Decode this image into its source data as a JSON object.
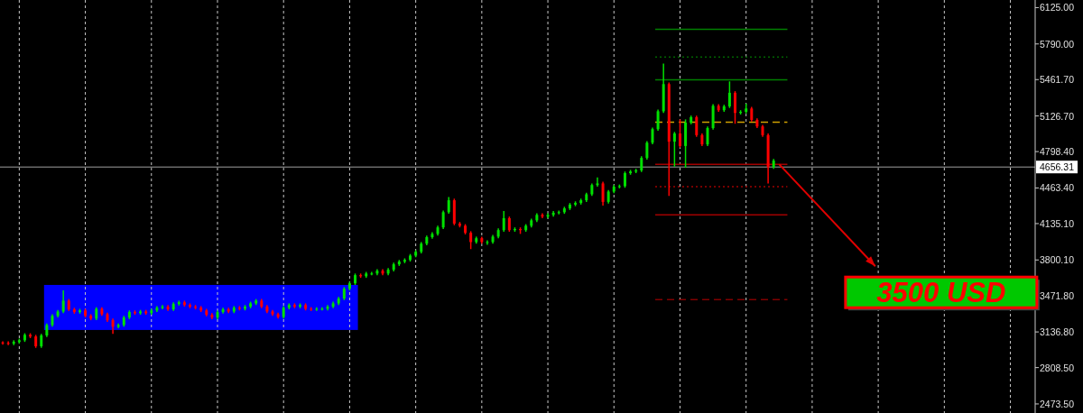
{
  "chart_data": {
    "type": "candlestick",
    "categories": [
      null,
      null,
      null,
      null,
      null,
      null,
      null,
      null,
      null,
      null,
      null,
      null,
      null,
      null,
      null,
      null,
      null,
      null,
      null,
      null,
      null,
      null,
      null,
      null,
      null,
      null,
      null,
      null,
      null,
      null,
      null,
      null,
      null,
      null,
      null,
      null,
      null,
      null,
      null,
      null,
      null,
      null,
      null,
      null,
      null,
      null,
      null,
      null,
      null,
      null,
      null,
      null,
      null,
      null,
      null,
      null,
      null,
      null,
      null,
      null,
      null,
      null,
      null,
      null,
      null,
      null,
      null,
      null,
      null,
      null,
      null,
      null,
      null,
      null,
      null,
      null,
      null,
      null,
      null,
      null,
      null,
      null,
      null,
      null,
      null,
      null,
      null,
      null,
      null,
      null,
      null,
      null,
      null,
      null,
      null,
      null,
      null,
      null,
      null,
      null,
      null,
      null,
      null,
      null,
      null,
      null,
      null,
      null,
      null,
      null,
      null,
      null,
      null,
      null,
      null,
      null,
      null,
      null,
      null,
      null,
      null,
      null,
      null,
      null,
      null,
      null,
      null,
      null,
      null,
      null,
      null,
      null,
      null,
      null,
      null,
      null,
      null,
      null,
      null,
      null,
      null,
      null,
      null,
      null,
      null,
      null,
      null,
      null,
      null,
      null,
      null,
      null,
      null,
      null,
      null,
      null,
      null,
      null,
      null,
      null,
      null,
      null,
      null,
      null,
      null,
      null,
      null,
      null,
      null,
      null,
      null,
      null,
      null,
      null,
      null,
      null,
      null,
      null,
      null,
      null,
      null,
      null,
      null,
      null,
      null,
      null,
      null,
      null
    ],
    "ohlc": [
      [
        3040,
        3050,
        3020,
        3035
      ],
      [
        3035,
        3050,
        3015,
        3030
      ],
      [
        3030,
        3060,
        3015,
        3045
      ],
      [
        3045,
        3075,
        3030,
        3060
      ],
      [
        3060,
        3125,
        3045,
        3110
      ],
      [
        3110,
        3125,
        3080,
        3095
      ],
      [
        3095,
        3110,
        2990,
        3005
      ],
      [
        3005,
        3120,
        2990,
        3105
      ],
      [
        3105,
        3215,
        3090,
        3200
      ],
      [
        3200,
        3300,
        3185,
        3285
      ],
      [
        3285,
        3340,
        3270,
        3325
      ],
      [
        3325,
        3520,
        3310,
        3425
      ],
      [
        3425,
        3440,
        3330,
        3345
      ],
      [
        3345,
        3360,
        3305,
        3320
      ],
      [
        3320,
        3350,
        3305,
        3335
      ],
      [
        3335,
        3350,
        3270,
        3285
      ],
      [
        3285,
        3300,
        3245,
        3260
      ],
      [
        3260,
        3365,
        3245,
        3350
      ],
      [
        3350,
        3365,
        3285,
        3300
      ],
      [
        3300,
        3315,
        3230,
        3245
      ],
      [
        3245,
        3260,
        3120,
        3185
      ],
      [
        3185,
        3215,
        3170,
        3200
      ],
      [
        3200,
        3285,
        3185,
        3270
      ],
      [
        3270,
        3335,
        3255,
        3320
      ],
      [
        3320,
        3335,
        3295,
        3310
      ],
      [
        3310,
        3340,
        3295,
        3325
      ],
      [
        3325,
        3340,
        3295,
        3310
      ],
      [
        3310,
        3350,
        3295,
        3335
      ],
      [
        3335,
        3375,
        3320,
        3360
      ],
      [
        3360,
        3385,
        3345,
        3370
      ],
      [
        3370,
        3385,
        3330,
        3345
      ],
      [
        3345,
        3410,
        3330,
        3395
      ],
      [
        3395,
        3425,
        3380,
        3410
      ],
      [
        3410,
        3425,
        3370,
        3385
      ],
      [
        3385,
        3400,
        3355,
        3370
      ],
      [
        3370,
        3385,
        3345,
        3360
      ],
      [
        3360,
        3375,
        3320,
        3335
      ],
      [
        3335,
        3350,
        3280,
        3295
      ],
      [
        3295,
        3310,
        3255,
        3270
      ],
      [
        3270,
        3335,
        3255,
        3320
      ],
      [
        3320,
        3360,
        3305,
        3345
      ],
      [
        3345,
        3360,
        3310,
        3325
      ],
      [
        3325,
        3375,
        3310,
        3360
      ],
      [
        3360,
        3375,
        3335,
        3350
      ],
      [
        3350,
        3385,
        3335,
        3370
      ],
      [
        3370,
        3415,
        3355,
        3400
      ],
      [
        3400,
        3440,
        3385,
        3425
      ],
      [
        3425,
        3440,
        3355,
        3370
      ],
      [
        3370,
        3385,
        3310,
        3325
      ],
      [
        3325,
        3340,
        3285,
        3300
      ],
      [
        3300,
        3315,
        3260,
        3275
      ],
      [
        3275,
        3375,
        3260,
        3360
      ],
      [
        3360,
        3400,
        3345,
        3385
      ],
      [
        3385,
        3400,
        3355,
        3370
      ],
      [
        3370,
        3400,
        3355,
        3385
      ],
      [
        3385,
        3400,
        3335,
        3350
      ],
      [
        3350,
        3365,
        3330,
        3345
      ],
      [
        3345,
        3365,
        3330,
        3350
      ],
      [
        3350,
        3365,
        3335,
        3350
      ],
      [
        3350,
        3385,
        3335,
        3370
      ],
      [
        3370,
        3415,
        3355,
        3400
      ],
      [
        3400,
        3460,
        3385,
        3445
      ],
      [
        3445,
        3550,
        3430,
        3535
      ],
      [
        3535,
        3600,
        3520,
        3585
      ],
      [
        3585,
        3675,
        3570,
        3660
      ],
      [
        3660,
        3675,
        3635,
        3650
      ],
      [
        3650,
        3690,
        3635,
        3675
      ],
      [
        3675,
        3690,
        3660,
        3675
      ],
      [
        3675,
        3715,
        3660,
        3700
      ],
      [
        3700,
        3715,
        3660,
        3675
      ],
      [
        3675,
        3725,
        3660,
        3710
      ],
      [
        3710,
        3775,
        3695,
        3760
      ],
      [
        3760,
        3800,
        3745,
        3785
      ],
      [
        3785,
        3815,
        3770,
        3800
      ],
      [
        3800,
        3855,
        3785,
        3840
      ],
      [
        3840,
        3890,
        3825,
        3875
      ],
      [
        3875,
        3965,
        3860,
        3950
      ],
      [
        3950,
        4025,
        3935,
        4010
      ],
      [
        4010,
        4055,
        3995,
        4040
      ],
      [
        4040,
        4115,
        4025,
        4100
      ],
      [
        4100,
        4255,
        4085,
        4240
      ],
      [
        4240,
        4380,
        4225,
        4350
      ],
      [
        4350,
        4365,
        4120,
        4135
      ],
      [
        4135,
        4150,
        4100,
        4115
      ],
      [
        4115,
        4130,
        4035,
        4050
      ],
      [
        4050,
        4065,
        3900,
        3965
      ],
      [
        3965,
        4015,
        3950,
        4000
      ],
      [
        4000,
        4015,
        3950,
        3965
      ],
      [
        3965,
        3980,
        3940,
        3965
      ],
      [
        3965,
        4030,
        3950,
        4015
      ],
      [
        4015,
        4090,
        4000,
        4075
      ],
      [
        4075,
        4250,
        4060,
        4185
      ],
      [
        4185,
        4200,
        4060,
        4075
      ],
      [
        4075,
        4100,
        4060,
        4085
      ],
      [
        4085,
        4100,
        4040,
        4075
      ],
      [
        4075,
        4130,
        4060,
        4115
      ],
      [
        4115,
        4180,
        4100,
        4165
      ],
      [
        4165,
        4230,
        4150,
        4215
      ],
      [
        4215,
        4230,
        4185,
        4200
      ],
      [
        4200,
        4230,
        4185,
        4215
      ],
      [
        4215,
        4250,
        4200,
        4235
      ],
      [
        4235,
        4255,
        4220,
        4240
      ],
      [
        4240,
        4290,
        4225,
        4275
      ],
      [
        4275,
        4325,
        4260,
        4310
      ],
      [
        4310,
        4340,
        4295,
        4325
      ],
      [
        4325,
        4365,
        4310,
        4350
      ],
      [
        4350,
        4420,
        4335,
        4405
      ],
      [
        4405,
        4505,
        4390,
        4490
      ],
      [
        4490,
        4560,
        4475,
        4505
      ],
      [
        4505,
        4520,
        4300,
        4335
      ],
      [
        4335,
        4445,
        4320,
        4430
      ],
      [
        4430,
        4490,
        4415,
        4475
      ],
      [
        4475,
        4495,
        4460,
        4480
      ],
      [
        4480,
        4615,
        4465,
        4600
      ],
      [
        4600,
        4630,
        4585,
        4615
      ],
      [
        4615,
        4640,
        4600,
        4625
      ],
      [
        4625,
        4755,
        4610,
        4740
      ],
      [
        4740,
        4895,
        4725,
        4880
      ],
      [
        4880,
        5020,
        4865,
        5005
      ],
      [
        5005,
        5185,
        4990,
        5170
      ],
      [
        5170,
        5610,
        5155,
        5420
      ],
      [
        5420,
        5435,
        4390,
        4890
      ],
      [
        4890,
        4980,
        4660,
        4965
      ],
      [
        4965,
        5095,
        4835,
        4850
      ],
      [
        4850,
        5095,
        4650,
        5065
      ],
      [
        5065,
        5130,
        5050,
        5115
      ],
      [
        5115,
        5130,
        4935,
        4950
      ],
      [
        4950,
        4965,
        4850,
        4865
      ],
      [
        4865,
        5030,
        4850,
        5015
      ],
      [
        5015,
        5235,
        5000,
        5220
      ],
      [
        5220,
        5235,
        5165,
        5180
      ],
      [
        5180,
        5230,
        5165,
        5215
      ],
      [
        5215,
        5445,
        5200,
        5340
      ],
      [
        5340,
        5355,
        5055,
        5155
      ],
      [
        5155,
        5180,
        5140,
        5165
      ],
      [
        5165,
        5240,
        5150,
        5195
      ],
      [
        5195,
        5210,
        5075,
        5090
      ],
      [
        5090,
        5105,
        5015,
        5030
      ],
      [
        5030,
        5045,
        4935,
        4950
      ],
      [
        4950,
        4965,
        4505,
        4655
      ],
      [
        4655,
        4730,
        4640,
        4715
      ],
      null,
      null,
      null,
      null,
      null,
      null,
      null,
      null,
      null,
      null,
      null,
      null,
      null,
      null,
      null,
      null,
      null,
      null,
      null,
      null,
      null,
      null,
      null,
      null,
      null,
      null,
      null,
      null,
      null,
      null,
      null,
      null,
      null,
      null,
      null,
      null,
      null,
      null,
      null,
      null,
      null,
      null,
      null,
      null,
      null,
      null,
      null
    ],
    "ylim": [
      2390,
      6195
    ],
    "yticks": [
      {
        "value": 6125,
        "label": "6125.00"
      },
      {
        "value": 5790,
        "label": "5790.00"
      },
      {
        "value": 5461.7,
        "label": "5461.70"
      },
      {
        "value": 5126.7,
        "label": "5126.70"
      },
      {
        "value": 4798.4,
        "label": "4798.40"
      },
      {
        "value": 4463.4,
        "label": "4463.40"
      },
      {
        "value": 4135.1,
        "label": "4135.10"
      },
      {
        "value": 3800.1,
        "label": "3800.10"
      },
      {
        "value": 3471.8,
        "label": "3471.80"
      },
      {
        "value": 3136.8,
        "label": "3136.80"
      },
      {
        "value": 2808.5,
        "label": "2808.50"
      },
      {
        "value": 2473.5,
        "label": "2473.50"
      }
    ],
    "grid": "x",
    "tick_labels": "y",
    "ref_lines": [
      {
        "axis": "y",
        "value": 4656.31,
        "label": "4656.31",
        "color": "#a0a0a0",
        "line_style": "solid"
      },
      {
        "axis": "y",
        "value": 5925,
        "color": "#008000",
        "line_style": "solid"
      },
      {
        "axis": "y",
        "value": 5670,
        "color": "#006400",
        "line_style": "dotted"
      },
      {
        "axis": "y",
        "value": 5460,
        "color": "#008000",
        "line_style": "solid"
      },
      {
        "axis": "y",
        "value": 5070,
        "color": "#d0a000",
        "line_style": "dashed"
      },
      {
        "axis": "y",
        "value": 4680,
        "color": "#a00000",
        "line_style": "solid"
      },
      {
        "axis": "y",
        "value": 4475,
        "color": "#a00000",
        "line_style": "dotted"
      },
      {
        "axis": "y",
        "value": 4215,
        "color": "#a00000",
        "line_style": "solid"
      },
      {
        "axis": "y",
        "value": 3435,
        "color": "#800000",
        "line_style": "dashed"
      }
    ],
    "bands": [
      {
        "axis": "y",
        "from": 3155,
        "to": 3570,
        "color": "#0000ff"
      }
    ],
    "annotations": [
      "3500 USD"
    ]
  }
}
